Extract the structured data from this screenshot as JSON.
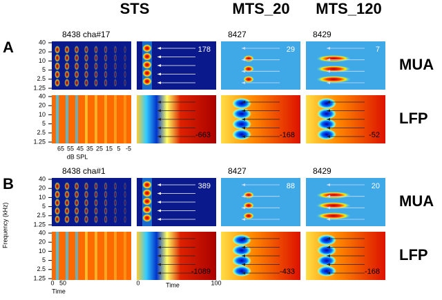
{
  "columns": [
    "STS",
    "MTS_20",
    "MTS_120"
  ],
  "panels": [
    {
      "label": "A",
      "units": [
        "8438 cha#17",
        "8427",
        "8429"
      ],
      "rows": [
        {
          "label": "MUA",
          "values": [
            178,
            29,
            7
          ]
        },
        {
          "label": "LFP",
          "values": [
            -663,
            -168,
            -52
          ]
        }
      ]
    },
    {
      "label": "B",
      "units": [
        "8438 cha#1",
        "8427",
        "8429"
      ],
      "rows": [
        {
          "label": "MUA",
          "values": [
            389,
            88,
            20
          ]
        },
        {
          "label": "LFP",
          "values": [
            -1089,
            -433,
            -168
          ]
        }
      ]
    }
  ],
  "frequency_ticks": [
    40,
    20,
    10,
    5,
    2.5,
    1.25
  ],
  "y_axis_label": "Frequency (kHz)",
  "db_ticks": [
    65,
    55,
    45,
    35,
    25,
    15,
    5,
    -5
  ],
  "db_label": "dB SPL",
  "time_ticks_left": [
    0,
    50
  ],
  "time_ticks_right": [
    0,
    100
  ],
  "time_label": "Time"
}
